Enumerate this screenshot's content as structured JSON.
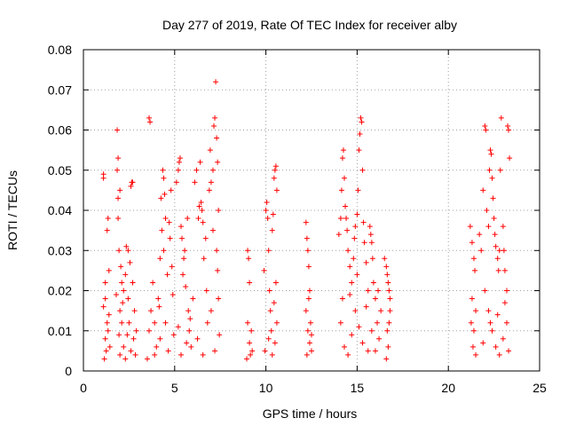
{
  "chart_data": {
    "type": "scatter",
    "title": "Day 277 of 2019, Rate Of TEC Index for receiver alby",
    "xlabel": "GPS time / hours",
    "ylabel": "ROTI / TECUs",
    "xlim": [
      0,
      25
    ],
    "ylim": [
      0,
      0.08
    ],
    "x_ticks": [
      0,
      5,
      10,
      15,
      20,
      25
    ],
    "x_tick_labels": [
      "0",
      "5",
      "10",
      "15",
      "20",
      "25"
    ],
    "y_ticks": [
      0,
      0.01,
      0.02,
      0.03,
      0.04,
      0.05,
      0.06,
      0.07,
      0.08
    ],
    "y_tick_labels": [
      "0",
      "0.01",
      "0.02",
      "0.03",
      "0.04",
      "0.05",
      "0.06",
      "0.07",
      "0.08"
    ],
    "grid": true,
    "marker": "+",
    "color": "#ff0000",
    "series": [
      {
        "name": "ROTI",
        "points": [
          [
            1.1,
            0.049
          ],
          [
            1.1,
            0.048
          ],
          [
            1.2,
            0.022
          ],
          [
            1.2,
            0.018
          ],
          [
            1.3,
            0.035
          ],
          [
            1.35,
            0.038
          ],
          [
            1.4,
            0.025
          ],
          [
            1.3,
            0.012
          ],
          [
            1.2,
            0.008
          ],
          [
            1.25,
            0.005
          ],
          [
            1.15,
            0.003
          ],
          [
            1.4,
            0.014
          ],
          [
            1.35,
            0.01
          ],
          [
            1.45,
            0.006
          ],
          [
            1.1,
            0.016
          ],
          [
            1.85,
            0.06
          ],
          [
            1.9,
            0.053
          ],
          [
            1.85,
            0.05
          ],
          [
            1.9,
            0.043
          ],
          [
            1.9,
            0.038
          ],
          [
            2.0,
            0.045
          ],
          [
            1.95,
            0.03
          ],
          [
            2.05,
            0.026
          ],
          [
            2.1,
            0.022
          ],
          [
            1.8,
            0.019
          ],
          [
            2.0,
            0.015
          ],
          [
            2.2,
            0.02
          ],
          [
            2.3,
            0.024
          ],
          [
            2.1,
            0.012
          ],
          [
            2.4,
            0.009
          ],
          [
            2.2,
            0.006
          ],
          [
            2.0,
            0.004
          ],
          [
            2.3,
            0.003
          ],
          [
            2.5,
            0.012
          ],
          [
            2.45,
            0.018
          ],
          [
            2.35,
            0.031
          ],
          [
            2.45,
            0.03
          ],
          [
            2.6,
            0.046
          ],
          [
            2.65,
            0.047
          ],
          [
            2.7,
            0.047
          ],
          [
            2.55,
            0.027
          ],
          [
            2.7,
            0.022
          ],
          [
            2.8,
            0.015
          ],
          [
            2.9,
            0.01
          ],
          [
            2.6,
            0.005
          ],
          [
            2.85,
            0.004
          ],
          [
            2.75,
            0.008
          ],
          [
            1.95,
            0.009
          ],
          [
            2.15,
            0.017
          ],
          [
            3.6,
            0.063
          ],
          [
            3.65,
            0.062
          ],
          [
            3.5,
            0.003
          ],
          [
            3.6,
            0.01
          ],
          [
            3.7,
            0.015
          ],
          [
            3.8,
            0.022
          ],
          [
            3.9,
            0.012
          ],
          [
            4.0,
            0.006
          ],
          [
            4.1,
            0.018
          ],
          [
            4.2,
            0.028
          ],
          [
            4.3,
            0.035
          ],
          [
            4.25,
            0.043
          ],
          [
            4.35,
            0.05
          ],
          [
            4.4,
            0.048
          ],
          [
            4.45,
            0.044
          ],
          [
            4.5,
            0.038
          ],
          [
            4.4,
            0.03
          ],
          [
            4.6,
            0.024
          ],
          [
            4.7,
            0.037
          ],
          [
            4.75,
            0.033
          ],
          [
            4.8,
            0.045
          ],
          [
            4.85,
            0.026
          ],
          [
            4.9,
            0.019
          ],
          [
            4.2,
            0.008
          ],
          [
            4.5,
            0.012
          ],
          [
            4.65,
            0.005
          ],
          [
            4.95,
            0.009
          ],
          [
            3.9,
            0.004
          ],
          [
            4.15,
            0.016
          ],
          [
            5.1,
            0.047
          ],
          [
            5.2,
            0.05
          ],
          [
            5.25,
            0.052
          ],
          [
            5.3,
            0.053
          ],
          [
            5.35,
            0.036
          ],
          [
            5.4,
            0.033
          ],
          [
            5.5,
            0.028
          ],
          [
            5.45,
            0.024
          ],
          [
            5.55,
            0.03
          ],
          [
            5.6,
            0.021
          ],
          [
            5.7,
            0.038
          ],
          [
            5.75,
            0.015
          ],
          [
            5.8,
            0.01
          ],
          [
            5.9,
            0.006
          ],
          [
            6.0,
            0.018
          ],
          [
            5.2,
            0.011
          ],
          [
            5.35,
            0.004
          ],
          [
            5.65,
            0.007
          ],
          [
            5.85,
            0.013
          ],
          [
            6.1,
            0.047
          ],
          [
            6.2,
            0.05
          ],
          [
            6.3,
            0.038
          ],
          [
            6.35,
            0.041
          ],
          [
            6.4,
            0.052
          ],
          [
            6.45,
            0.042
          ],
          [
            6.5,
            0.04
          ],
          [
            6.55,
            0.037
          ],
          [
            6.6,
            0.028
          ],
          [
            6.7,
            0.033
          ],
          [
            6.75,
            0.02
          ],
          [
            6.8,
            0.012
          ],
          [
            6.9,
            0.045
          ],
          [
            6.95,
            0.055
          ],
          [
            7.0,
            0.047
          ],
          [
            7.1,
            0.05
          ],
          [
            7.15,
            0.061
          ],
          [
            7.2,
            0.063
          ],
          [
            7.25,
            0.072
          ],
          [
            7.3,
            0.058
          ],
          [
            7.35,
            0.052
          ],
          [
            7.4,
            0.04
          ],
          [
            7.3,
            0.03
          ],
          [
            7.35,
            0.025
          ],
          [
            7.4,
            0.018
          ],
          [
            7.45,
            0.009
          ],
          [
            7.2,
            0.005
          ],
          [
            7.0,
            0.015
          ],
          [
            6.25,
            0.008
          ],
          [
            6.55,
            0.004
          ],
          [
            7.1,
            0.035
          ],
          [
            9.0,
            0.03
          ],
          [
            9.05,
            0.028
          ],
          [
            9.1,
            0.022
          ],
          [
            9.0,
            0.012
          ],
          [
            9.1,
            0.007
          ],
          [
            9.15,
            0.004
          ],
          [
            9.2,
            0.01
          ],
          [
            8.95,
            0.003
          ],
          [
            9.25,
            0.005
          ],
          [
            9.9,
            0.025
          ],
          [
            10.0,
            0.04
          ],
          [
            10.05,
            0.042
          ],
          [
            10.1,
            0.038
          ],
          [
            10.15,
            0.03
          ],
          [
            10.2,
            0.02
          ],
          [
            10.25,
            0.015
          ],
          [
            10.3,
            0.01
          ],
          [
            10.35,
            0.035
          ],
          [
            10.4,
            0.039
          ],
          [
            10.45,
            0.048
          ],
          [
            10.5,
            0.05
          ],
          [
            10.55,
            0.051
          ],
          [
            10.6,
            0.045
          ],
          [
            10.55,
            0.022
          ],
          [
            10.6,
            0.012
          ],
          [
            10.5,
            0.007
          ],
          [
            10.35,
            0.004
          ],
          [
            10.15,
            0.008
          ],
          [
            9.95,
            0.005
          ],
          [
            10.45,
            0.017
          ],
          [
            12.2,
            0.037
          ],
          [
            12.25,
            0.033
          ],
          [
            12.3,
            0.03
          ],
          [
            12.35,
            0.026
          ],
          [
            12.4,
            0.02
          ],
          [
            12.2,
            0.015
          ],
          [
            12.3,
            0.01
          ],
          [
            12.4,
            0.007
          ],
          [
            12.5,
            0.005
          ],
          [
            12.45,
            0.012
          ],
          [
            12.25,
            0.004
          ],
          [
            12.35,
            0.018
          ],
          [
            12.5,
            0.009
          ],
          [
            14.0,
            0.034
          ],
          [
            14.1,
            0.038
          ],
          [
            14.15,
            0.045
          ],
          [
            14.2,
            0.053
          ],
          [
            14.25,
            0.055
          ],
          [
            14.3,
            0.048
          ],
          [
            14.35,
            0.041
          ],
          [
            14.4,
            0.038
          ],
          [
            14.45,
            0.035
          ],
          [
            14.5,
            0.03
          ],
          [
            14.6,
            0.026
          ],
          [
            14.7,
            0.022
          ],
          [
            14.8,
            0.028
          ],
          [
            14.85,
            0.033
          ],
          [
            14.9,
            0.036
          ],
          [
            15.0,
            0.039
          ],
          [
            15.05,
            0.045
          ],
          [
            15.1,
            0.055
          ],
          [
            15.15,
            0.059
          ],
          [
            15.2,
            0.063
          ],
          [
            15.25,
            0.062
          ],
          [
            15.3,
            0.05
          ],
          [
            15.35,
            0.037
          ],
          [
            15.4,
            0.032
          ],
          [
            15.5,
            0.027
          ],
          [
            15.6,
            0.02
          ],
          [
            14.1,
            0.012
          ],
          [
            14.3,
            0.006
          ],
          [
            14.5,
            0.004
          ],
          [
            14.7,
            0.009
          ],
          [
            14.9,
            0.015
          ],
          [
            15.1,
            0.011
          ],
          [
            15.3,
            0.007
          ],
          [
            15.5,
            0.016
          ],
          [
            15.6,
            0.005
          ],
          [
            14.2,
            0.018
          ],
          [
            14.6,
            0.019
          ],
          [
            15.0,
            0.024
          ],
          [
            15.7,
            0.036
          ],
          [
            15.75,
            0.034
          ],
          [
            15.8,
            0.032
          ],
          [
            15.85,
            0.028
          ],
          [
            15.9,
            0.022
          ],
          [
            16.0,
            0.018
          ],
          [
            16.1,
            0.012
          ],
          [
            16.2,
            0.008
          ],
          [
            16.3,
            0.015
          ],
          [
            16.0,
            0.005
          ],
          [
            15.8,
            0.01
          ],
          [
            16.15,
            0.02
          ],
          [
            16.5,
            0.028
          ],
          [
            16.6,
            0.026
          ],
          [
            16.65,
            0.024
          ],
          [
            16.7,
            0.022
          ],
          [
            16.75,
            0.02
          ],
          [
            16.8,
            0.015
          ],
          [
            16.65,
            0.01
          ],
          [
            16.7,
            0.006
          ],
          [
            16.6,
            0.003
          ],
          [
            16.75,
            0.012
          ],
          [
            16.8,
            0.018
          ],
          [
            21.2,
            0.036
          ],
          [
            21.3,
            0.032
          ],
          [
            21.4,
            0.028
          ],
          [
            21.45,
            0.025
          ],
          [
            21.3,
            0.018
          ],
          [
            21.5,
            0.015
          ],
          [
            21.4,
            0.01
          ],
          [
            21.35,
            0.006
          ],
          [
            21.5,
            0.004
          ],
          [
            21.25,
            0.012
          ],
          [
            21.7,
            0.034
          ],
          [
            21.8,
            0.03
          ],
          [
            21.9,
            0.045
          ],
          [
            22.0,
            0.061
          ],
          [
            22.05,
            0.06
          ],
          [
            22.1,
            0.04
          ],
          [
            22.2,
            0.036
          ],
          [
            22.25,
            0.05
          ],
          [
            22.3,
            0.055
          ],
          [
            22.35,
            0.054
          ],
          [
            22.4,
            0.048
          ],
          [
            22.45,
            0.043
          ],
          [
            22.5,
            0.038
          ],
          [
            22.55,
            0.034
          ],
          [
            22.6,
            0.031
          ],
          [
            22.7,
            0.028
          ],
          [
            22.75,
            0.025
          ],
          [
            22.8,
            0.03
          ],
          [
            22.85,
            0.05
          ],
          [
            22.9,
            0.063
          ],
          [
            23.0,
            0.036
          ],
          [
            23.05,
            0.03
          ],
          [
            23.1,
            0.025
          ],
          [
            23.2,
            0.02
          ],
          [
            23.25,
            0.061
          ],
          [
            23.3,
            0.06
          ],
          [
            23.35,
            0.053
          ],
          [
            22.0,
            0.02
          ],
          [
            22.2,
            0.015
          ],
          [
            22.4,
            0.01
          ],
          [
            22.6,
            0.006
          ],
          [
            22.8,
            0.004
          ],
          [
            23.0,
            0.008
          ],
          [
            23.2,
            0.012
          ],
          [
            23.3,
            0.005
          ],
          [
            21.9,
            0.007
          ],
          [
            22.3,
            0.012
          ],
          [
            22.7,
            0.014
          ],
          [
            23.1,
            0.017
          ]
        ]
      }
    ]
  }
}
